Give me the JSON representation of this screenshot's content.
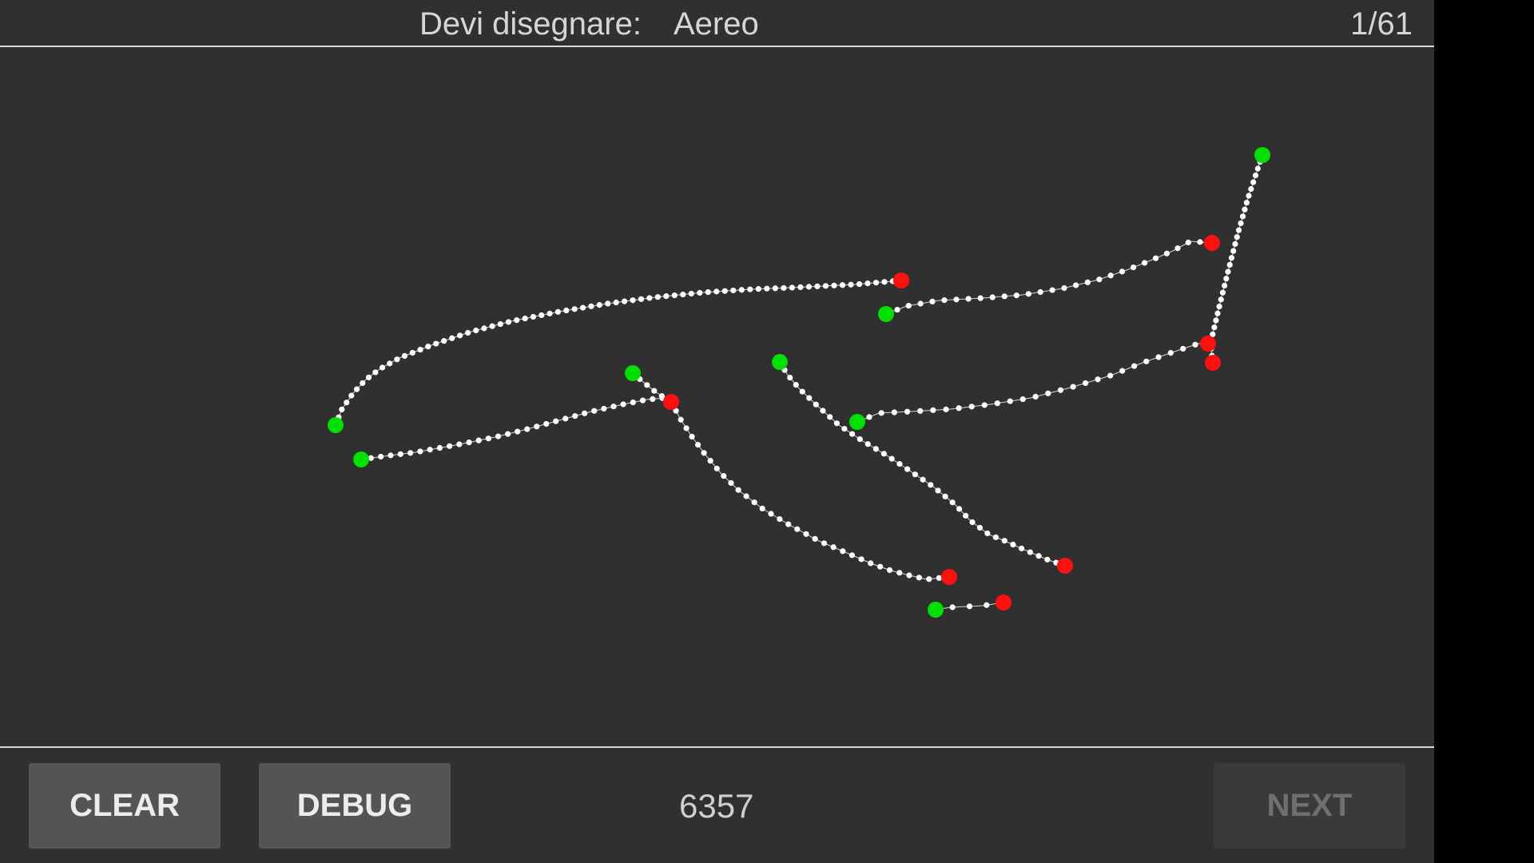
{
  "header": {
    "prompt_label": "Devi disegnare:",
    "prompt_word": "Aereo",
    "progress": "1/61"
  },
  "footer": {
    "clear_label": "CLEAR",
    "debug_label": "DEBUG",
    "score": "6357",
    "next_label": "NEXT",
    "next_enabled": false
  },
  "colors": {
    "background": "#303030",
    "stroke": "#ffffff",
    "start_point": "#00e000",
    "end_point": "#ff1010",
    "divider": "#d8d8d8"
  }
}
